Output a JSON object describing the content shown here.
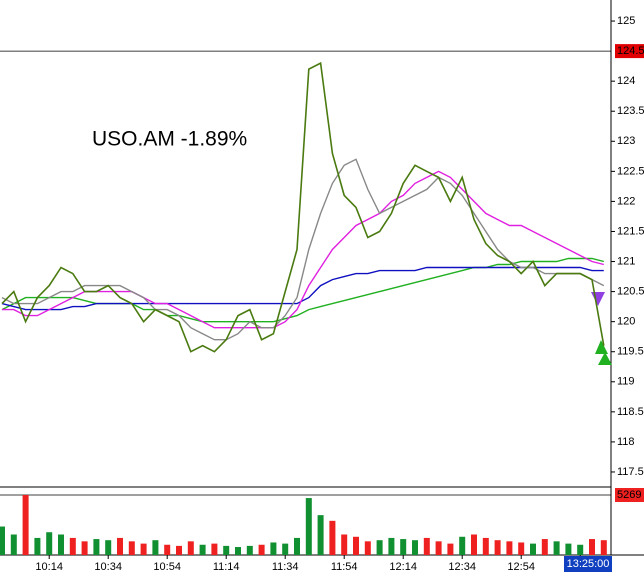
{
  "chart_data": {
    "type": "line",
    "title": "USO.AM  -1.89%",
    "categories": [
      null,
      null,
      null,
      null,
      "10:14",
      null,
      null,
      null,
      null,
      "10:34",
      null,
      null,
      null,
      null,
      "10:54",
      null,
      null,
      null,
      null,
      "11:14",
      null,
      null,
      null,
      null,
      "11:34",
      null,
      null,
      null,
      null,
      "11:54",
      null,
      null,
      null,
      null,
      "12:14",
      null,
      null,
      null,
      null,
      "12:34",
      null,
      null,
      null,
      null,
      "12:54",
      null,
      null,
      null,
      null,
      "13:14",
      null,
      null
    ],
    "series": [
      {
        "name": "Price",
        "color": "#4a7a10",
        "values": [
          120.3,
          120.5,
          120.0,
          120.4,
          120.6,
          120.9,
          120.8,
          120.5,
          120.5,
          120.6,
          120.4,
          120.3,
          120.0,
          120.2,
          120.1,
          120.0,
          119.5,
          119.6,
          119.5,
          119.7,
          120.1,
          120.2,
          119.7,
          119.8,
          120.5,
          121.2,
          124.2,
          124.3,
          122.8,
          122.1,
          121.9,
          121.4,
          121.5,
          121.8,
          122.3,
          122.6,
          122.5,
          122.4,
          122.0,
          122.4,
          121.7,
          121.3,
          121.1,
          121.0,
          120.8,
          121.0,
          120.6,
          120.8,
          120.8,
          120.8,
          120.7,
          119.6
        ]
      },
      {
        "name": "MA1",
        "color": "#888888",
        "values": [
          120.4,
          120.3,
          120.3,
          120.3,
          120.4,
          120.5,
          120.5,
          120.6,
          120.6,
          120.6,
          120.6,
          120.5,
          120.4,
          120.2,
          120.2,
          120.1,
          119.9,
          119.8,
          119.7,
          119.7,
          119.8,
          120.0,
          119.9,
          119.9,
          120.1,
          120.4,
          121.2,
          121.8,
          122.3,
          122.6,
          122.7,
          122.2,
          121.8,
          121.9,
          122.0,
          122.1,
          122.2,
          122.4,
          122.3,
          122.1,
          121.8,
          121.5,
          121.2,
          121.0,
          120.9,
          120.9,
          120.8,
          120.8,
          120.8,
          120.8,
          120.7,
          120.6
        ]
      },
      {
        "name": "MA2",
        "color": "#e020e0",
        "values": [
          120.2,
          120.2,
          120.1,
          120.1,
          120.2,
          120.3,
          120.4,
          120.5,
          120.5,
          120.5,
          120.5,
          120.5,
          120.4,
          120.3,
          120.3,
          120.2,
          120.1,
          120.0,
          119.9,
          119.9,
          119.9,
          119.9,
          119.9,
          119.9,
          120.0,
          120.2,
          120.6,
          120.9,
          121.2,
          121.4,
          121.6,
          121.7,
          121.8,
          122.0,
          122.1,
          122.3,
          122.4,
          122.5,
          122.4,
          122.2,
          122.0,
          121.8,
          121.7,
          121.6,
          121.6,
          121.5,
          121.4,
          121.3,
          121.2,
          121.1,
          121.0,
          120.95
        ]
      },
      {
        "name": "MA3",
        "color": "#1010c0",
        "values": [
          120.3,
          120.25,
          120.2,
          120.2,
          120.2,
          120.2,
          120.25,
          120.25,
          120.3,
          120.3,
          120.3,
          120.3,
          120.3,
          120.3,
          120.3,
          120.3,
          120.3,
          120.3,
          120.3,
          120.3,
          120.3,
          120.3,
          120.3,
          120.3,
          120.3,
          120.3,
          120.4,
          120.6,
          120.7,
          120.75,
          120.8,
          120.8,
          120.85,
          120.85,
          120.85,
          120.85,
          120.9,
          120.9,
          120.9,
          120.9,
          120.9,
          120.9,
          120.9,
          120.9,
          120.9,
          120.9,
          120.9,
          120.9,
          120.9,
          120.9,
          120.85,
          120.85
        ]
      },
      {
        "name": "MA4",
        "color": "#20b020",
        "values": [
          120.2,
          120.3,
          120.4,
          120.4,
          120.4,
          120.4,
          120.4,
          120.35,
          120.3,
          120.3,
          120.3,
          120.3,
          120.2,
          120.2,
          120.1,
          120.1,
          120.05,
          120.0,
          120.0,
          120.0,
          120.0,
          120.0,
          120.0,
          120.0,
          120.05,
          120.1,
          120.2,
          120.25,
          120.3,
          120.35,
          120.4,
          120.45,
          120.5,
          120.55,
          120.6,
          120.65,
          120.7,
          120.75,
          120.8,
          120.85,
          120.9,
          120.9,
          120.95,
          120.95,
          121.0,
          121.0,
          121.0,
          121.0,
          121.05,
          121.05,
          121.05,
          121.0
        ]
      }
    ],
    "ylim": [
      117.25,
      125.35
    ],
    "yticks": [
      117.5,
      118,
      118.5,
      119,
      119.5,
      120,
      120.5,
      121,
      121.5,
      122,
      122.5,
      123,
      123.5,
      124,
      125
    ],
    "ref_line": {
      "value": 124.5,
      "color": "#e00000"
    },
    "volume": {
      "values": [
        2500,
        1800,
        5269,
        1500,
        2000,
        1800,
        1500,
        1200,
        1400,
        1300,
        1500,
        1200,
        1000,
        1300,
        900,
        800,
        1200,
        900,
        1000,
        800,
        700,
        800,
        900,
        1100,
        1000,
        1500,
        5000,
        3500,
        3000,
        1800,
        1600,
        1200,
        1300,
        1500,
        1400,
        1300,
        1500,
        1200,
        1000,
        1600,
        1800,
        1500,
        1300,
        1200,
        1100,
        1000,
        1400,
        1200,
        1000,
        900,
        1400,
        1300
      ],
      "ylim": [
        0,
        5269
      ],
      "max_label": 5269,
      "up_color": "#109030",
      "down_color": "#ee2020"
    },
    "time_label": "13:25:00",
    "grid": false
  }
}
